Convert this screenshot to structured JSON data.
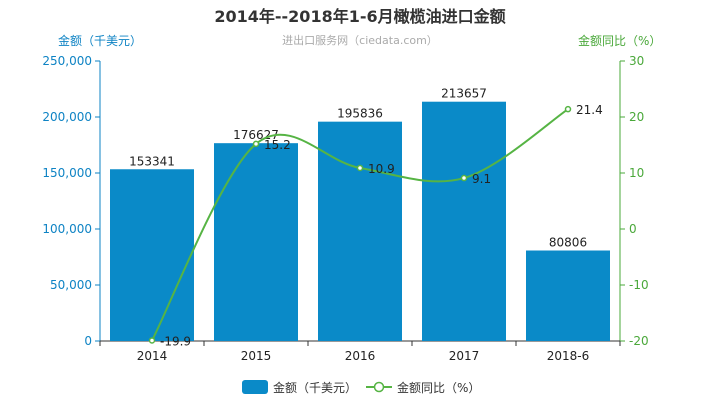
{
  "chart_data": {
    "type": "bar",
    "title": "2014年--2018年1-6月橄榄油进口金额",
    "subtitle": "进出口服务网（ciedata.com）",
    "categories": [
      "2014",
      "2015",
      "2016",
      "2017",
      "2018-6"
    ],
    "y_left": {
      "label": "金额（千美元）",
      "ylim": [
        0,
        250000
      ],
      "ticks": [
        0,
        50000,
        100000,
        150000,
        200000,
        250000
      ],
      "tick_labels": [
        "0",
        "50,000",
        "100,000",
        "150,000",
        "200,000",
        "250,000"
      ]
    },
    "y_right": {
      "label": "金额同比（%）",
      "ylim": [
        -20,
        30
      ],
      "ticks": [
        -20,
        -10,
        0,
        10,
        20,
        30
      ],
      "tick_labels": [
        "-20",
        "-10",
        "0",
        "10",
        "20",
        "30"
      ]
    },
    "series": [
      {
        "name": "金额（千美元）",
        "type": "bar",
        "axis": "left",
        "values": [
          153341,
          176627,
          195836,
          213657,
          80806
        ],
        "labels": [
          "153341",
          "176627",
          "195836",
          "213657",
          "80806"
        ],
        "color": "#0a8ac8"
      },
      {
        "name": "金额同比（%）",
        "type": "line",
        "axis": "right",
        "smooth": true,
        "values": [
          -19.9,
          15.2,
          10.9,
          9.1,
          21.4
        ],
        "labels": [
          "-19.9",
          "15.2",
          "10.9",
          "9.1",
          "21.4"
        ],
        "color": "#56b444"
      }
    ],
    "legend_position": "bottom-center",
    "grid": false
  }
}
